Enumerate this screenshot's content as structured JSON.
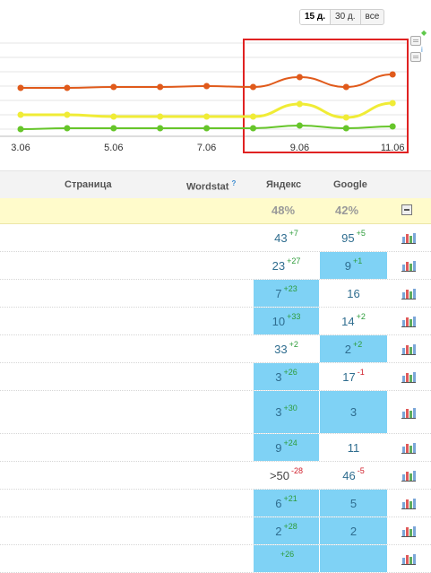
{
  "period_selector": {
    "options": [
      "15 д.",
      "30 д.",
      "все"
    ],
    "active": "15 д."
  },
  "chart_data": {
    "type": "line",
    "x": [
      "3.06",
      "4.06",
      "5.06",
      "6.06",
      "7.06",
      "8.06",
      "9.06",
      "10.06",
      "11.06"
    ],
    "x_tick_labels": [
      "3.06",
      "5.06",
      "7.06",
      "9.06",
      "11.06"
    ],
    "series": [
      {
        "color": "#e05a1b",
        "values": [
          98,
          98,
          97,
          97,
          96,
          97,
          86,
          97,
          83
        ]
      },
      {
        "color": "#f0ec36",
        "values": [
          128,
          128,
          130,
          130,
          130,
          130,
          116,
          131,
          115
        ]
      },
      {
        "color": "#66c52a",
        "values": [
          144,
          143,
          143,
          143,
          143,
          143,
          140,
          143,
          141
        ]
      }
    ],
    "highlight_range": [
      "8.06",
      "11.06"
    ],
    "grid": true
  },
  "table": {
    "headers": {
      "page": "Страница",
      "wordstat": "Wordstat",
      "wordstat_hint": "?",
      "yandex": "Яндекс",
      "google": "Google"
    },
    "summary": {
      "yandex": "48%",
      "google": "42%"
    },
    "rows": [
      {
        "y": "43",
        "yd": "+7",
        "g": "95",
        "gd": "+5",
        "yhl": false,
        "ghl": false
      },
      {
        "y": "23",
        "yd": "+27",
        "g": "9",
        "gd": "+1",
        "yhl": false,
        "ghl": true
      },
      {
        "y": "7",
        "yd": "+23",
        "g": "16",
        "gd": "",
        "yhl": true,
        "ghl": false
      },
      {
        "y": "10",
        "yd": "+33",
        "g": "14",
        "gd": "+2",
        "yhl": true,
        "ghl": false
      },
      {
        "y": "33",
        "yd": "+2",
        "g": "2",
        "gd": "+2",
        "yhl": false,
        "ghl": true
      },
      {
        "y": "3",
        "yd": "+26",
        "g": "17",
        "gd": "-1",
        "yhl": true,
        "ghl": false
      },
      {
        "y": "3",
        "yd": "+30",
        "g": "3",
        "gd": "",
        "yhl": true,
        "ghl": true
      },
      {
        "y": "9",
        "yd": "+24",
        "g": "11",
        "gd": "",
        "yhl": true,
        "ghl": false
      },
      {
        "y": ">50",
        "yd": "-28",
        "g": "46",
        "gd": "-5",
        "yhl": false,
        "ghl": false
      },
      {
        "y": "6",
        "yd": "+21",
        "g": "5",
        "gd": "",
        "yhl": true,
        "ghl": true
      },
      {
        "y": "2",
        "yd": "+28",
        "g": "2",
        "gd": "",
        "yhl": true,
        "ghl": true
      },
      {
        "y": "",
        "yd": "+26",
        "g": "",
        "gd": "",
        "yhl": true,
        "ghl": true
      }
    ]
  },
  "icons": {
    "collapse": "collapse-icon",
    "stats": "bar-chart-icon"
  }
}
